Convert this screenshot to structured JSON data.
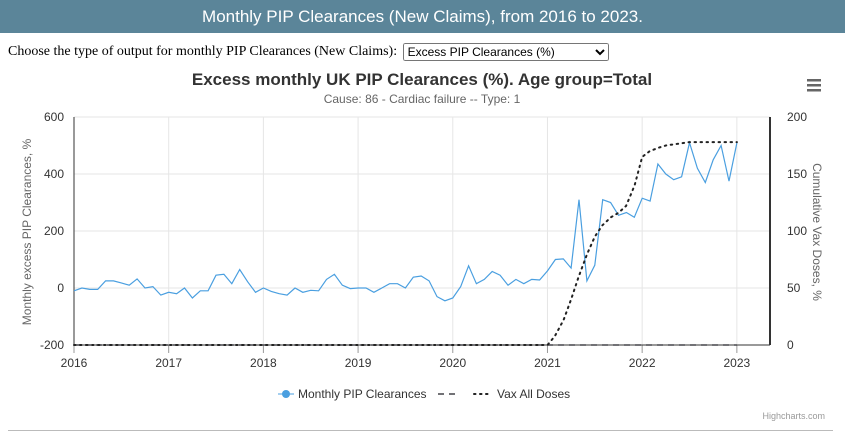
{
  "page": {
    "banner_title": "Monthly PIP Clearances (New Claims), from 2016 to 2023.",
    "chooser_label": "Choose the type of output for monthly PIP Clearances (New Claims):",
    "output_type": "Excess PIP Clearances (%)"
  },
  "chart_data": {
    "type": "line",
    "title": "Excess monthly UK PIP Clearances (%). Age group=Total",
    "subtitle": "Cause: 86 - Cardiac failure -- Type: 1",
    "ylabel_left": "Monthly excess PIP Clearances, %",
    "ylabel_right": "Cumulative Vax Doses, %",
    "ylim_left": [
      -200,
      600
    ],
    "ylim_right": [
      0,
      200
    ],
    "yticks_left": [
      "-200",
      "0",
      "200",
      "400",
      "600"
    ],
    "yticks_right": [
      "0",
      "50",
      "100",
      "150",
      "200"
    ],
    "xlim": [
      2016,
      2023.35
    ],
    "xticks": [
      "2016",
      "2017",
      "2018",
      "2019",
      "2020",
      "2021",
      "2022",
      "2023"
    ],
    "grid": true,
    "legend_position": "bottom-center",
    "credit": "Highcharts.com",
    "colors": {
      "series1": "#4a9fe0",
      "series2": "#434348",
      "series3": "#222222",
      "axis": "#333333",
      "grid": "#e6e6e6"
    },
    "series": [
      {
        "name": "Monthly PIP Clearances",
        "style": "solid",
        "axis": "left",
        "x_start": 2016,
        "x_step_months": 1,
        "values": [
          -10,
          0,
          -5,
          -5,
          25,
          25,
          18,
          10,
          32,
          0,
          5,
          -25,
          -15,
          -20,
          0,
          -35,
          -10,
          -10,
          45,
          48,
          15,
          65,
          22,
          -15,
          0,
          -12,
          -20,
          -25,
          0,
          -15,
          -8,
          -10,
          30,
          48,
          10,
          -2,
          0,
          0,
          -15,
          0,
          15,
          15,
          0,
          38,
          42,
          25,
          -30,
          -45,
          -35,
          5,
          78,
          15,
          30,
          58,
          45,
          10,
          30,
          15,
          30,
          28,
          60,
          100,
          102,
          70,
          310,
          25,
          80,
          310,
          300,
          255,
          265,
          248,
          315,
          305,
          435,
          400,
          380,
          390,
          510,
          420,
          370,
          450,
          500,
          375,
          510
        ]
      },
      {
        "name": "",
        "style": "dashed",
        "axis": "right",
        "x": [
          2016,
          2023
        ],
        "values": [
          0,
          0
        ]
      },
      {
        "name": "Vax All Doses",
        "style": "dotted",
        "axis": "right",
        "x": [
          2016,
          2021,
          2021.08,
          2021.17,
          2021.25,
          2021.33,
          2021.42,
          2021.5,
          2021.58,
          2021.67,
          2021.75,
          2021.83,
          2021.92,
          2022,
          2022.08,
          2022.17,
          2022.25,
          2022.33,
          2022.42,
          2022.5,
          2022.58,
          2022.67,
          2022.75,
          2022.83,
          2022.92,
          2023
        ],
        "values": [
          0,
          0,
          8,
          22,
          40,
          60,
          80,
          95,
          105,
          112,
          116,
          122,
          140,
          165,
          170,
          173,
          175,
          176,
          177,
          178,
          178,
          178,
          178,
          178,
          178,
          178
        ]
      }
    ]
  }
}
